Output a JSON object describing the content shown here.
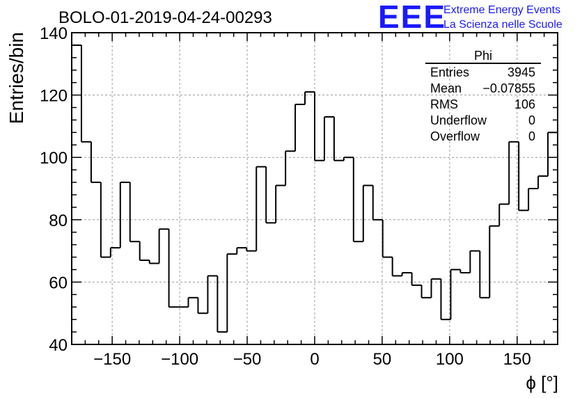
{
  "chart_data": {
    "type": "histogram",
    "title": "BOLO-01-2019-04-24-00293",
    "xlabel": "ϕ [°]",
    "ylabel": "Entries/bin",
    "xlim": [
      -180,
      180
    ],
    "ylim": [
      40,
      140
    ],
    "grid": true,
    "x_ticks": [
      -150,
      -100,
      -50,
      0,
      50,
      100,
      150
    ],
    "y_ticks": [
      40,
      60,
      80,
      100,
      120,
      140
    ],
    "bin_width": 7.2,
    "bin_edges_start": -180,
    "values": [
      136,
      105,
      92,
      68,
      71,
      92,
      73,
      67,
      66,
      77,
      52,
      52,
      55,
      50,
      62,
      44,
      69,
      71,
      70,
      97,
      79,
      91,
      102,
      117,
      121,
      99,
      113,
      99,
      100,
      73,
      91,
      80,
      68,
      62,
      63,
      59,
      55,
      61,
      48,
      64,
      63,
      70,
      55,
      78,
      85,
      105,
      83,
      90,
      94,
      108
    ],
    "stats_box": {
      "name": "Phi",
      "rows": [
        {
          "label": "Entries",
          "value": "3945"
        },
        {
          "label": "Mean",
          "value": "−0.07855"
        },
        {
          "label": "RMS",
          "value": "106"
        },
        {
          "label": "Underflow",
          "value": "0"
        },
        {
          "label": "Overflow",
          "value": "0"
        }
      ]
    }
  },
  "logo": {
    "text": "EEE",
    "line1": "Extreme Energy Events",
    "line2": "La Scienza nelle Scuole",
    "color": "#1a1aff"
  }
}
